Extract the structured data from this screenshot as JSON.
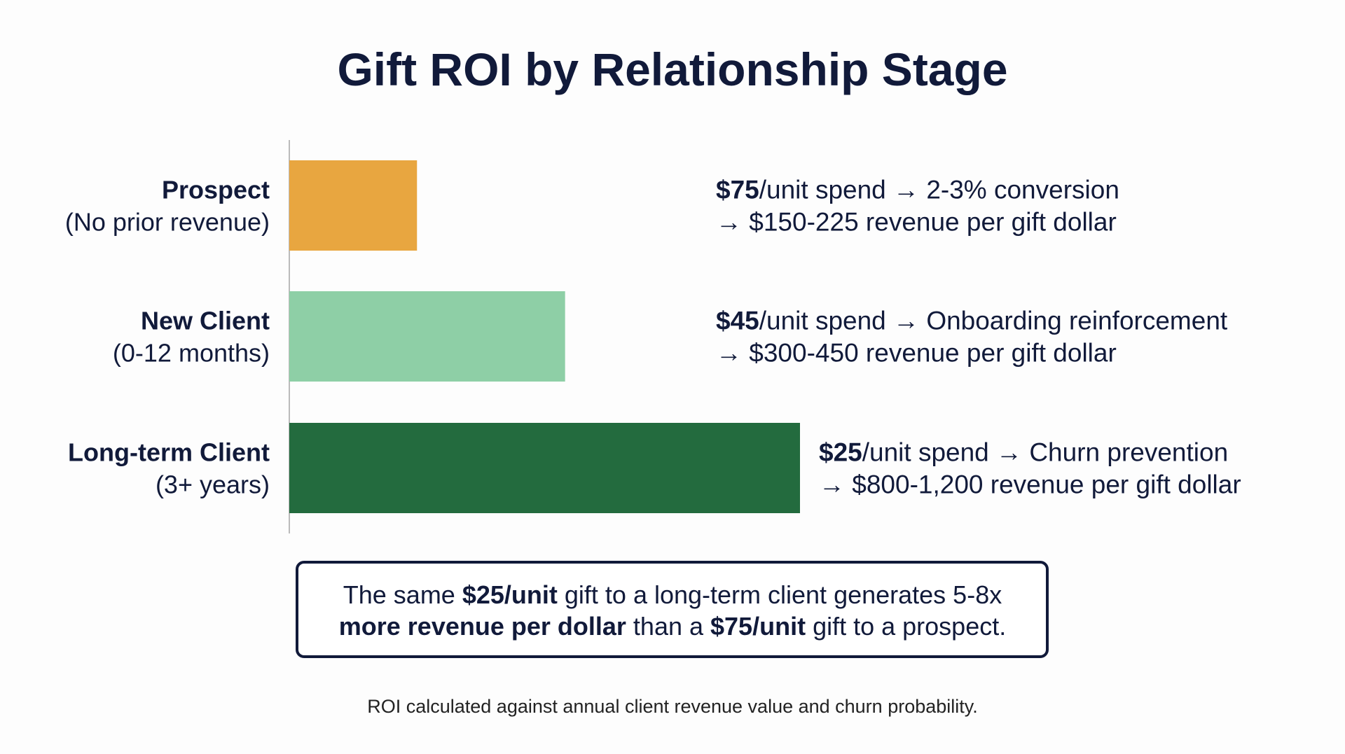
{
  "chart_data": {
    "type": "bar",
    "orientation": "horizontal",
    "title": "Gift ROI by Relationship Stage",
    "categories": [
      "Prospect",
      "New Client",
      "Long-term Client"
    ],
    "category_notes": [
      "(No prior revenue)",
      "(0-12 months)",
      "(3+ years)"
    ],
    "values": [
      25,
      54,
      100
    ],
    "colors": [
      "#e8a640",
      "#8ecfa6",
      "#236b3e"
    ],
    "xlim": [
      0,
      100
    ],
    "annotations": [
      [
        [
          {
            "text": "$75",
            "bold": true
          },
          {
            "text": "/unit spend → 2-3% conversion"
          }
        ],
        [
          {
            "text": "→ $150-225 revenue per gift dollar"
          }
        ]
      ],
      [
        [
          {
            "text": "$45",
            "bold": true
          },
          {
            "text": "/unit spend → Onboarding reinforcement"
          }
        ],
        [
          {
            "text": "→ $300-450 revenue per gift dollar"
          }
        ]
      ],
      [
        [
          {
            "text": "$25",
            "bold": true
          },
          {
            "text": "/unit spend → Churn prevention"
          }
        ],
        [
          {
            "text": "→ $800-1,200 revenue per gift dollar"
          }
        ]
      ]
    ],
    "callout": [
      [
        {
          "text": "The same "
        },
        {
          "text": "$25/unit",
          "bold": true
        },
        {
          "text": " gift to a long-term client generates 5-8x"
        }
      ],
      [
        {
          "text": "more revenue per dollar",
          "bold": true
        },
        {
          "text": " than a "
        },
        {
          "text": "$75/unit",
          "bold": true
        },
        {
          "text": " gift to a prospect."
        }
      ]
    ],
    "footnote": "ROI calculated against annual client revenue value and churn probability."
  }
}
